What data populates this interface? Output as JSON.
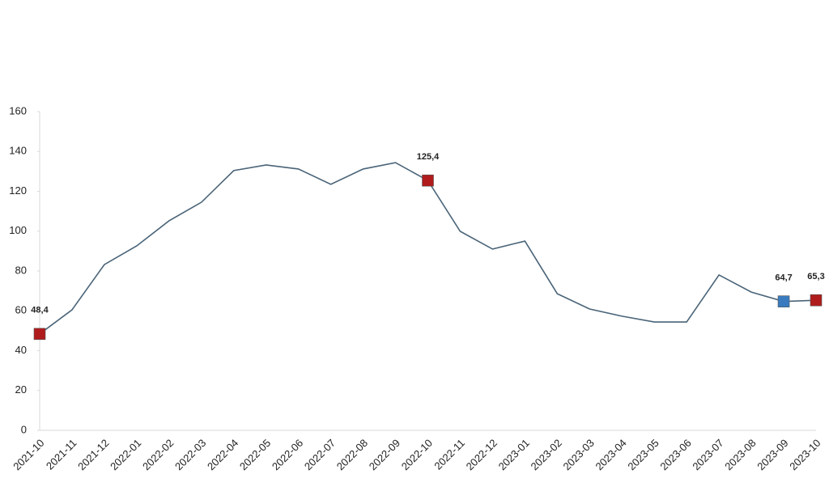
{
  "chart_data": {
    "type": "line",
    "categories": [
      "2021-10",
      "2021-11",
      "2021-12",
      "2022-01",
      "2022-02",
      "2022-03",
      "2022-04",
      "2022-05",
      "2022-06",
      "2022-07",
      "2022-08",
      "2022-09",
      "2022-10",
      "2022-11",
      "2022-12",
      "2023-01",
      "2023-02",
      "2023-03",
      "2023-04",
      "2023-05",
      "2023-06",
      "2023-07",
      "2023-08",
      "2023-09",
      "2023-10"
    ],
    "values": [
      48.4,
      60.5,
      83.2,
      92.6,
      105.2,
      114.5,
      130.4,
      133.2,
      131.2,
      123.5,
      131.2,
      134.4,
      125.4,
      99.9,
      91,
      95,
      68.6,
      60.9,
      57.3,
      54.4,
      54.4,
      78,
      69.4,
      64.7,
      65.3
    ],
    "value_labels": [
      "48,4",
      null,
      null,
      null,
      null,
      null,
      null,
      null,
      null,
      null,
      null,
      null,
      "125,4",
      null,
      null,
      null,
      null,
      null,
      null,
      null,
      null,
      null,
      null,
      "64,7",
      "65,3"
    ],
    "marker_colors": [
      "#b01c1c",
      null,
      null,
      null,
      null,
      null,
      null,
      null,
      null,
      null,
      null,
      null,
      "#b01c1c",
      null,
      null,
      null,
      null,
      null,
      null,
      null,
      null,
      null,
      null,
      "#3a7bbf",
      "#b01c1c"
    ],
    "color": "#4a6478",
    "ylim": [
      0,
      160
    ],
    "yticks": [
      0,
      20,
      40,
      60,
      80,
      100,
      120,
      140,
      160
    ],
    "grid": false
  }
}
